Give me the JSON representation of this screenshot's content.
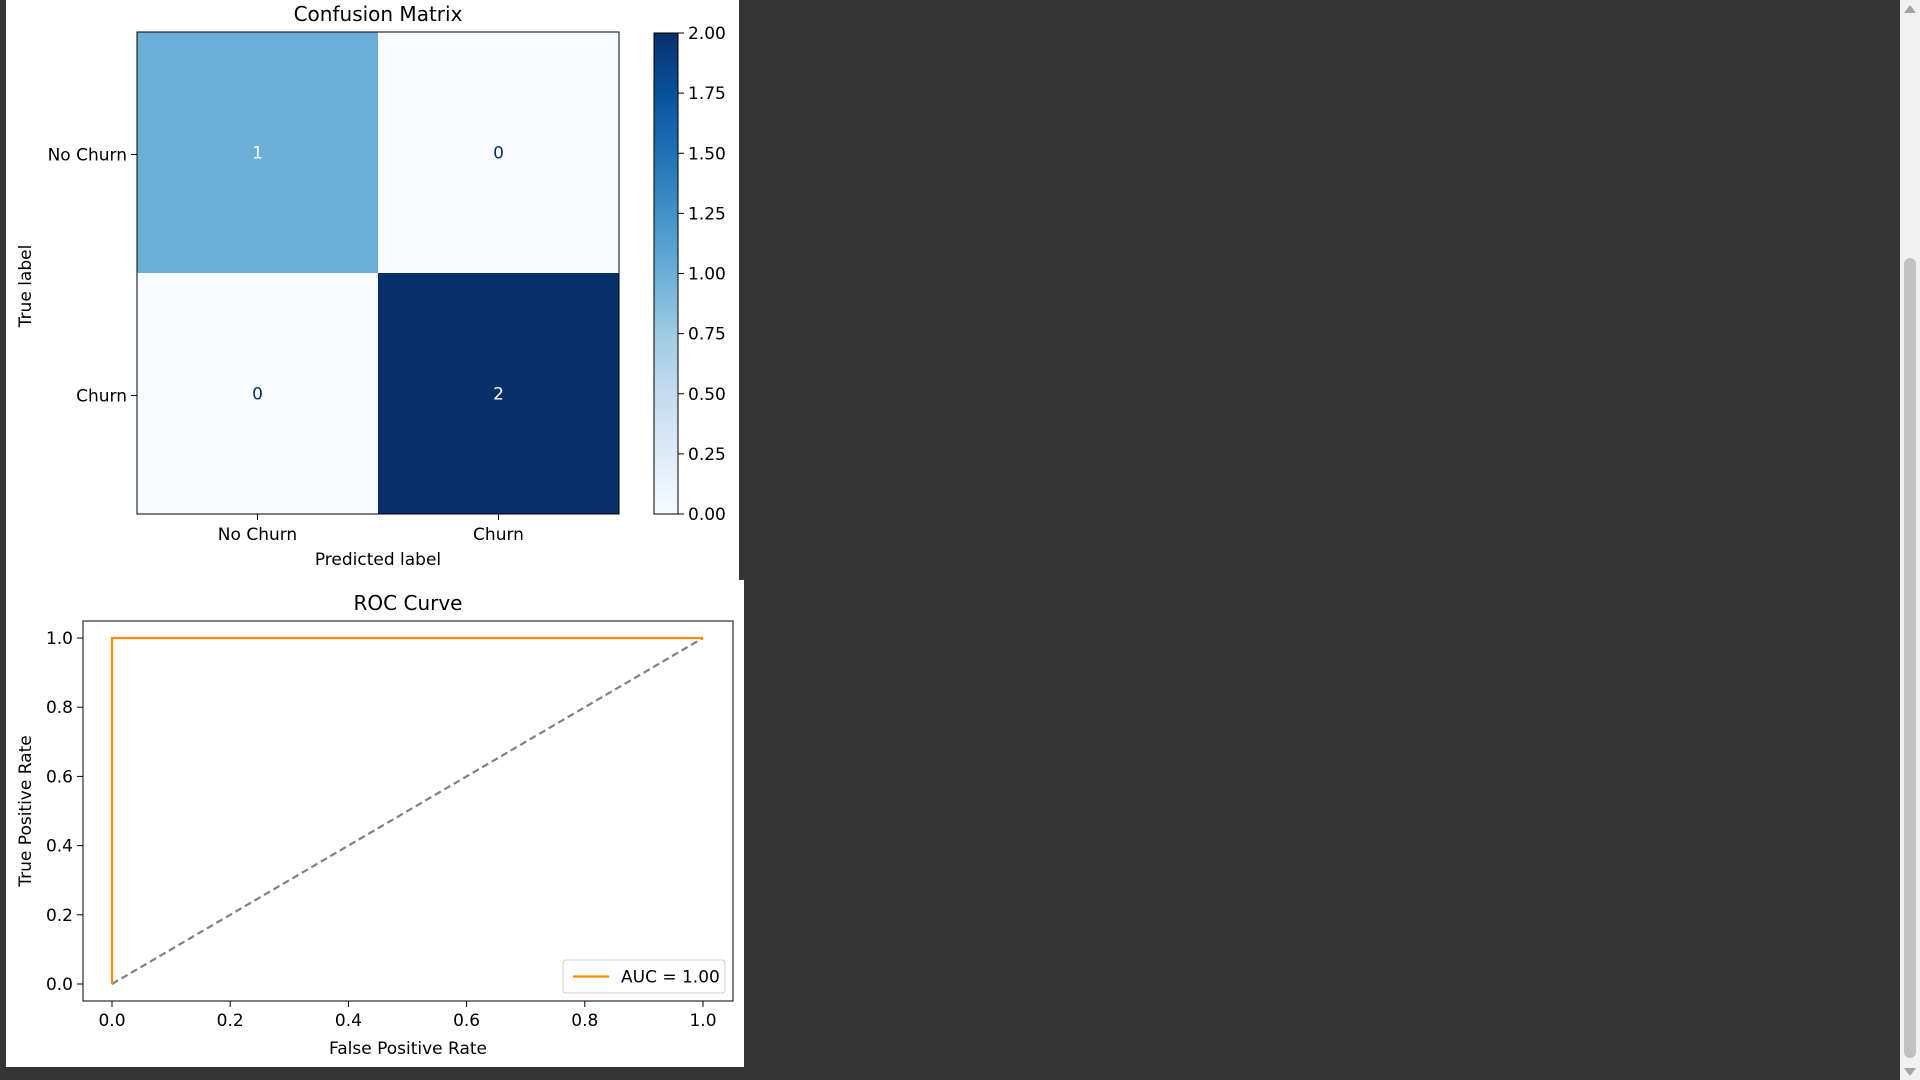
{
  "chart_data": [
    {
      "type": "heatmap",
      "title": "Confusion Matrix",
      "xlabel": "Predicted label",
      "ylabel": "True label",
      "x_categories": [
        "No Churn",
        "Churn"
      ],
      "y_categories": [
        "No Churn",
        "Churn"
      ],
      "values": [
        [
          1,
          0
        ],
        [
          0,
          2
        ]
      ],
      "colormap": "Blues",
      "colorbar": {
        "range": [
          0,
          2
        ],
        "ticks": [
          "0.00",
          "0.25",
          "0.50",
          "0.75",
          "1.00",
          "1.25",
          "1.50",
          "1.75",
          "2.00"
        ]
      }
    },
    {
      "type": "line",
      "title": "ROC Curve",
      "xlabel": "False Positive Rate",
      "ylabel": "True Positive Rate",
      "xlim": [
        0,
        1
      ],
      "ylim": [
        0,
        1
      ],
      "x_ticks": [
        "0.0",
        "0.2",
        "0.4",
        "0.6",
        "0.8",
        "1.0"
      ],
      "y_ticks": [
        "0.0",
        "0.2",
        "0.4",
        "0.6",
        "0.8",
        "1.0"
      ],
      "grid": false,
      "legend_position": "lower-right",
      "series": [
        {
          "name": "AUC = 1.00",
          "x": [
            0,
            0,
            1
          ],
          "y": [
            0,
            1,
            1
          ],
          "color": "#ff8c00",
          "style": "solid"
        },
        {
          "x": [
            0,
            1
          ],
          "y": [
            0,
            1
          ],
          "color": "#808080",
          "style": "dashed"
        }
      ]
    }
  ]
}
